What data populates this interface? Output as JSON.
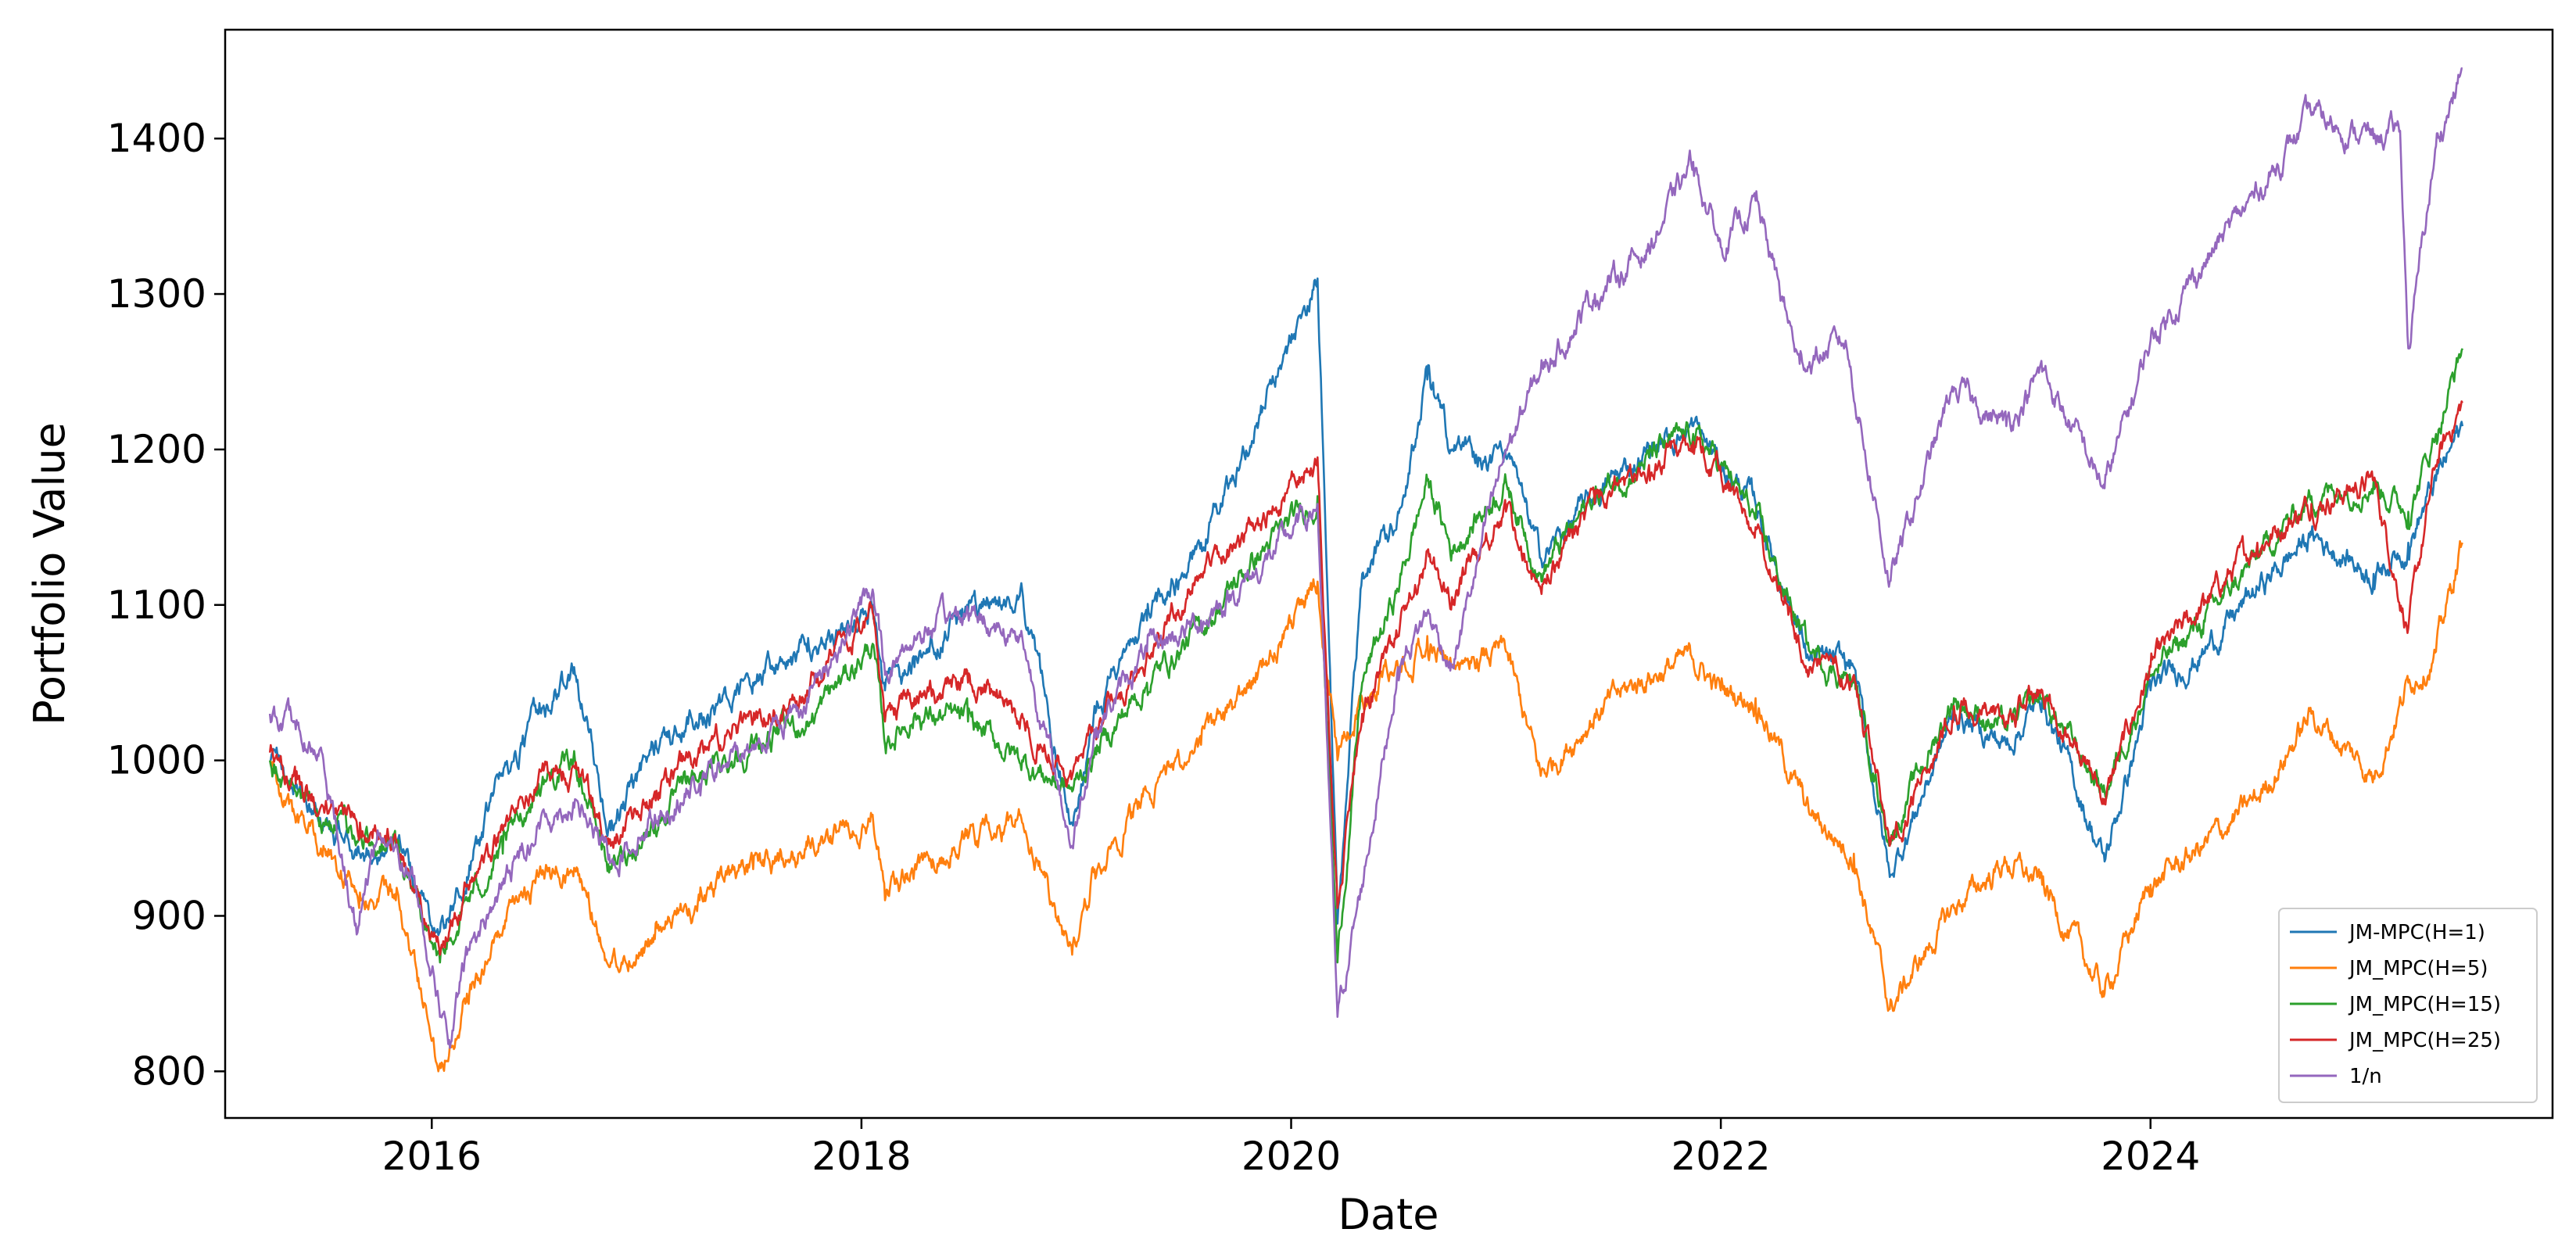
{
  "chart_data": {
    "type": "line",
    "title": "",
    "xlabel": "Date",
    "ylabel": "Portfolio Value",
    "xlim": [
      "2015-01-15",
      "2025-11-15"
    ],
    "ylim": [
      770,
      1470
    ],
    "x_ticks": [
      "2016",
      "2018",
      "2020",
      "2022",
      "2024"
    ],
    "y_ticks": [
      800,
      900,
      1000,
      1100,
      1200,
      1300,
      1400
    ],
    "grid": false,
    "legend_position": "bottom-right",
    "series": [
      {
        "name": "JM-MPC(H=1)",
        "color": "#1f77b4",
        "points": [
          [
            "2015-04-01",
            1000
          ],
          [
            "2015-05-15",
            985
          ],
          [
            "2015-07-01",
            960
          ],
          [
            "2015-09-01",
            940
          ],
          [
            "2015-11-01",
            945
          ],
          [
            "2016-01-15",
            890
          ],
          [
            "2016-03-01",
            925
          ],
          [
            "2016-05-01",
            990
          ],
          [
            "2016-07-01",
            1030
          ],
          [
            "2016-09-01",
            1055
          ],
          [
            "2016-11-01",
            955
          ],
          [
            "2017-01-15",
            1010
          ],
          [
            "2017-04-01",
            1030
          ],
          [
            "2017-07-01",
            1050
          ],
          [
            "2017-10-01",
            1070
          ],
          [
            "2018-01-20",
            1100
          ],
          [
            "2018-02-10",
            1045
          ],
          [
            "2018-04-01",
            1060
          ],
          [
            "2018-07-01",
            1095
          ],
          [
            "2018-10-01",
            1110
          ],
          [
            "2018-12-25",
            960
          ],
          [
            "2019-02-01",
            1035
          ],
          [
            "2019-05-01",
            1090
          ],
          [
            "2019-08-01",
            1140
          ],
          [
            "2019-11-01",
            1215
          ],
          [
            "2020-02-15",
            1310
          ],
          [
            "2020-03-20",
            895
          ],
          [
            "2020-05-01",
            1120
          ],
          [
            "2020-07-01",
            1160
          ],
          [
            "2020-08-20",
            1245
          ],
          [
            "2020-10-01",
            1200
          ],
          [
            "2021-01-01",
            1195
          ],
          [
            "2021-03-01",
            1130
          ],
          [
            "2021-06-01",
            1170
          ],
          [
            "2021-09-01",
            1200
          ],
          [
            "2021-11-15",
            1215
          ],
          [
            "2022-01-01",
            1190
          ],
          [
            "2022-03-01",
            1165
          ],
          [
            "2022-06-01",
            1065
          ],
          [
            "2022-08-15",
            1060
          ],
          [
            "2022-10-15",
            925
          ],
          [
            "2023-02-01",
            1030
          ],
          [
            "2023-05-01",
            1010
          ],
          [
            "2023-07-01",
            1040
          ],
          [
            "2023-10-15",
            935
          ],
          [
            "2024-01-01",
            1045
          ],
          [
            "2024-04-01",
            1070
          ],
          [
            "2024-07-01",
            1110
          ],
          [
            "2024-10-01",
            1145
          ],
          [
            "2025-01-15",
            1120
          ],
          [
            "2025-03-15",
            1140
          ],
          [
            "2025-05-01",
            1180
          ],
          [
            "2025-06-15",
            1215
          ]
        ]
      },
      {
        "name": "JM_MPC(H=5)",
        "color": "#ff7f0e",
        "points": [
          [
            "2015-04-01",
            1000
          ],
          [
            "2015-05-15",
            960
          ],
          [
            "2015-07-01",
            945
          ],
          [
            "2015-09-01",
            915
          ],
          [
            "2015-11-01",
            910
          ],
          [
            "2016-01-15",
            805
          ],
          [
            "2016-03-01",
            850
          ],
          [
            "2016-05-01",
            890
          ],
          [
            "2016-07-01",
            925
          ],
          [
            "2016-09-01",
            930
          ],
          [
            "2016-11-01",
            870
          ],
          [
            "2017-01-15",
            885
          ],
          [
            "2017-04-01",
            910
          ],
          [
            "2017-07-01",
            930
          ],
          [
            "2017-10-01",
            945
          ],
          [
            "2018-01-20",
            965
          ],
          [
            "2018-02-10",
            910
          ],
          [
            "2018-04-01",
            930
          ],
          [
            "2018-07-01",
            950
          ],
          [
            "2018-10-01",
            960
          ],
          [
            "2018-12-25",
            875
          ],
          [
            "2019-02-01",
            930
          ],
          [
            "2019-05-01",
            980
          ],
          [
            "2019-08-01",
            1010
          ],
          [
            "2019-11-01",
            1050
          ],
          [
            "2020-02-15",
            1115
          ],
          [
            "2020-03-20",
            1000
          ],
          [
            "2020-05-01",
            1040
          ],
          [
            "2020-07-01",
            1060
          ],
          [
            "2020-08-20",
            1080
          ],
          [
            "2020-10-01",
            1060
          ],
          [
            "2021-01-01",
            1070
          ],
          [
            "2021-03-01",
            990
          ],
          [
            "2021-06-01",
            1030
          ],
          [
            "2021-09-01",
            1055
          ],
          [
            "2021-11-15",
            1065
          ],
          [
            "2022-01-01",
            1045
          ],
          [
            "2022-03-01",
            1040
          ],
          [
            "2022-06-01",
            965
          ],
          [
            "2022-08-15",
            940
          ],
          [
            "2022-10-15",
            840
          ],
          [
            "2023-02-01",
            905
          ],
          [
            "2023-05-01",
            935
          ],
          [
            "2023-07-01",
            920
          ],
          [
            "2023-10-15",
            850
          ],
          [
            "2024-01-01",
            920
          ],
          [
            "2024-04-01",
            945
          ],
          [
            "2024-07-01",
            975
          ],
          [
            "2024-10-01",
            1030
          ],
          [
            "2025-01-15",
            990
          ],
          [
            "2025-03-15",
            1050
          ],
          [
            "2025-05-01",
            1070
          ],
          [
            "2025-06-15",
            1140
          ]
        ]
      },
      {
        "name": "JM_MPC(H=15)",
        "color": "#2ca02c",
        "points": [
          [
            "2015-04-01",
            1000
          ],
          [
            "2015-05-15",
            980
          ],
          [
            "2015-07-01",
            960
          ],
          [
            "2015-09-01",
            950
          ],
          [
            "2015-11-01",
            945
          ],
          [
            "2016-01-15",
            870
          ],
          [
            "2016-03-01",
            910
          ],
          [
            "2016-05-01",
            940
          ],
          [
            "2016-07-01",
            985
          ],
          [
            "2016-09-01",
            1000
          ],
          [
            "2016-11-01",
            930
          ],
          [
            "2017-01-15",
            960
          ],
          [
            "2017-04-01",
            990
          ],
          [
            "2017-07-01",
            1010
          ],
          [
            "2017-10-01",
            1025
          ],
          [
            "2018-01-20",
            1075
          ],
          [
            "2018-02-10",
            1010
          ],
          [
            "2018-04-01",
            1030
          ],
          [
            "2018-07-01",
            1025
          ],
          [
            "2018-10-01",
            1000
          ],
          [
            "2018-12-25",
            980
          ],
          [
            "2019-02-01",
            1005
          ],
          [
            "2019-05-01",
            1050
          ],
          [
            "2019-08-01",
            1085
          ],
          [
            "2019-11-01",
            1130
          ],
          [
            "2020-02-15",
            1170
          ],
          [
            "2020-03-20",
            870
          ],
          [
            "2020-05-01",
            1050
          ],
          [
            "2020-07-01",
            1110
          ],
          [
            "2020-08-20",
            1180
          ],
          [
            "2020-10-01",
            1135
          ],
          [
            "2021-01-01",
            1180
          ],
          [
            "2021-03-01",
            1120
          ],
          [
            "2021-06-01",
            1170
          ],
          [
            "2021-09-01",
            1195
          ],
          [
            "2021-11-15",
            1210
          ],
          [
            "2022-01-01",
            1190
          ],
          [
            "2022-03-01",
            1155
          ],
          [
            "2022-06-01",
            1070
          ],
          [
            "2022-08-15",
            1050
          ],
          [
            "2022-10-15",
            950
          ],
          [
            "2023-02-01",
            1040
          ],
          [
            "2023-05-01",
            1020
          ],
          [
            "2023-07-01",
            1040
          ],
          [
            "2023-10-15",
            980
          ],
          [
            "2024-01-01",
            1055
          ],
          [
            "2024-04-01",
            1090
          ],
          [
            "2024-07-01",
            1130
          ],
          [
            "2024-10-01",
            1170
          ],
          [
            "2025-01-15",
            1180
          ],
          [
            "2025-03-15",
            1160
          ],
          [
            "2025-05-01",
            1210
          ],
          [
            "2025-06-15",
            1265
          ]
        ]
      },
      {
        "name": "JM_MPC(H=25)",
        "color": "#d62728",
        "points": [
          [
            "2015-04-01",
            1005
          ],
          [
            "2015-05-15",
            985
          ],
          [
            "2015-07-01",
            970
          ],
          [
            "2015-09-01",
            960
          ],
          [
            "2015-11-01",
            950
          ],
          [
            "2016-01-15",
            875
          ],
          [
            "2016-03-01",
            920
          ],
          [
            "2016-05-01",
            955
          ],
          [
            "2016-07-01",
            990
          ],
          [
            "2016-09-01",
            995
          ],
          [
            "2016-11-01",
            945
          ],
          [
            "2017-01-15",
            980
          ],
          [
            "2017-04-01",
            1005
          ],
          [
            "2017-07-01",
            1025
          ],
          [
            "2017-10-01",
            1045
          ],
          [
            "2018-01-20",
            1095
          ],
          [
            "2018-02-10",
            1025
          ],
          [
            "2018-04-01",
            1040
          ],
          [
            "2018-07-01",
            1050
          ],
          [
            "2018-10-01",
            1030
          ],
          [
            "2018-12-25",
            990
          ],
          [
            "2019-02-01",
            1020
          ],
          [
            "2019-05-01",
            1070
          ],
          [
            "2019-08-01",
            1120
          ],
          [
            "2019-11-01",
            1150
          ],
          [
            "2020-02-15",
            1195
          ],
          [
            "2020-03-20",
            905
          ],
          [
            "2020-05-01",
            1030
          ],
          [
            "2020-07-01",
            1080
          ],
          [
            "2020-08-20",
            1135
          ],
          [
            "2020-10-01",
            1105
          ],
          [
            "2021-01-01",
            1160
          ],
          [
            "2021-03-01",
            1110
          ],
          [
            "2021-06-01",
            1165
          ],
          [
            "2021-09-01",
            1190
          ],
          [
            "2021-11-15",
            1205
          ],
          [
            "2022-01-01",
            1185
          ],
          [
            "2022-03-01",
            1150
          ],
          [
            "2022-06-01",
            1060
          ],
          [
            "2022-08-15",
            1055
          ],
          [
            "2022-10-15",
            945
          ],
          [
            "2023-02-01",
            1035
          ],
          [
            "2023-05-01",
            1025
          ],
          [
            "2023-07-01",
            1045
          ],
          [
            "2023-10-15",
            975
          ],
          [
            "2024-01-01",
            1060
          ],
          [
            "2024-04-01",
            1100
          ],
          [
            "2024-07-01",
            1140
          ],
          [
            "2024-10-01",
            1165
          ],
          [
            "2025-01-15",
            1180
          ],
          [
            "2025-03-15",
            1085
          ],
          [
            "2025-05-01",
            1190
          ],
          [
            "2025-06-15",
            1230
          ]
        ]
      },
      {
        "name": "1/n",
        "color": "#9467bd",
        "points": [
          [
            "2015-04-01",
            1030
          ],
          [
            "2015-05-15",
            1020
          ],
          [
            "2015-07-01",
            1000
          ],
          [
            "2015-08-25",
            895
          ],
          [
            "2015-10-01",
            955
          ],
          [
            "2015-12-01",
            925
          ],
          [
            "2016-02-01",
            815
          ],
          [
            "2016-03-01",
            875
          ],
          [
            "2016-05-01",
            920
          ],
          [
            "2016-07-01",
            960
          ],
          [
            "2016-09-01",
            975
          ],
          [
            "2016-11-01",
            935
          ],
          [
            "2017-01-15",
            965
          ],
          [
            "2017-04-01",
            985
          ],
          [
            "2017-07-01",
            1010
          ],
          [
            "2017-10-01",
            1040
          ],
          [
            "2018-01-20",
            1110
          ],
          [
            "2018-02-10",
            1055
          ],
          [
            "2018-04-01",
            1080
          ],
          [
            "2018-07-01",
            1095
          ],
          [
            "2018-10-01",
            1080
          ],
          [
            "2018-12-25",
            945
          ],
          [
            "2019-02-01",
            1020
          ],
          [
            "2019-05-01",
            1070
          ],
          [
            "2019-08-01",
            1090
          ],
          [
            "2019-11-01",
            1120
          ],
          [
            "2020-02-15",
            1165
          ],
          [
            "2020-03-20",
            835
          ],
          [
            "2020-05-01",
            920
          ],
          [
            "2020-07-01",
            1060
          ],
          [
            "2020-08-20",
            1095
          ],
          [
            "2020-10-01",
            1060
          ],
          [
            "2021-01-01",
            1200
          ],
          [
            "2021-03-01",
            1250
          ],
          [
            "2021-06-01",
            1300
          ],
          [
            "2021-09-01",
            1330
          ],
          [
            "2021-11-15",
            1385
          ],
          [
            "2022-01-01",
            1330
          ],
          [
            "2022-03-01",
            1360
          ],
          [
            "2022-05-15",
            1255
          ],
          [
            "2022-08-01",
            1270
          ],
          [
            "2022-10-15",
            1115
          ],
          [
            "2023-02-01",
            1240
          ],
          [
            "2023-05-01",
            1215
          ],
          [
            "2023-07-01",
            1250
          ],
          [
            "2023-10-15",
            1175
          ],
          [
            "2024-01-01",
            1270
          ],
          [
            "2024-04-01",
            1320
          ],
          [
            "2024-07-01",
            1365
          ],
          [
            "2024-10-01",
            1415
          ],
          [
            "2025-01-15",
            1400
          ],
          [
            "2025-03-01",
            1405
          ],
          [
            "2025-03-15",
            1265
          ],
          [
            "2025-05-01",
            1395
          ],
          [
            "2025-06-15",
            1445
          ]
        ]
      }
    ]
  }
}
